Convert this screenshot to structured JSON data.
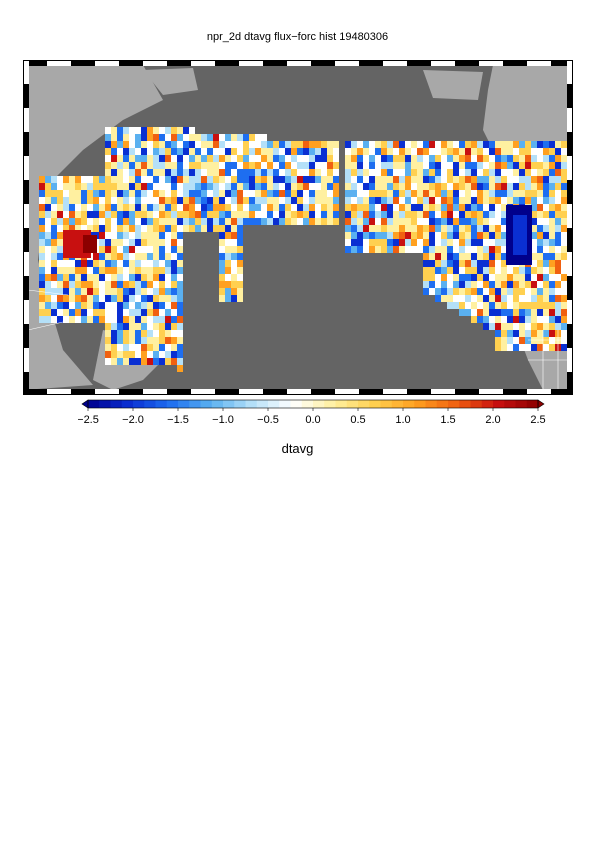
{
  "title": "npr_2d dtavg flux−forc hist 19480306",
  "colors": {
    "ocean": "#646464",
    "land": "#a8a8a8",
    "ramp": [
      "#00008c",
      "#0a2fd2",
      "#1e6ef0",
      "#5ab0f0",
      "#b4e0f8",
      "#ffffff",
      "#fff0a0",
      "#ffd050",
      "#ffa020",
      "#f06010",
      "#c81010",
      "#8c0000"
    ]
  },
  "colorbar": {
    "ticks": [
      "−2.5",
      "−2.0",
      "−1.5",
      "−1.0",
      "−0.5",
      "0.0",
      "0.5",
      "1.0",
      "1.5",
      "2.0",
      "2.5"
    ],
    "min": -2.5,
    "max": 2.5,
    "label": "dtavg"
  }
}
